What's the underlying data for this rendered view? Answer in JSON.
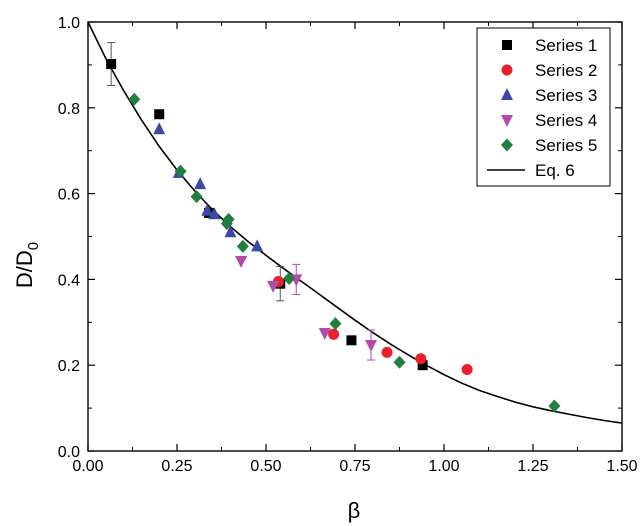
{
  "chart_data": {
    "type": "scatter",
    "xlabel": "β",
    "ylabel_main": "D/D",
    "ylabel_sub": "0",
    "xlim": [
      0,
      1.5
    ],
    "ylim": [
      0,
      1.0
    ],
    "x_ticks": [
      "0.00",
      "0.25",
      "0.50",
      "0.75",
      "1.00",
      "1.25",
      "1.50"
    ],
    "y_ticks": [
      "0.0",
      "0.2",
      "0.4",
      "0.6",
      "0.8",
      "1.0"
    ],
    "x_tick_values": [
      0,
      0.25,
      0.5,
      0.75,
      1.0,
      1.25,
      1.5
    ],
    "y_tick_values": [
      0,
      0.2,
      0.4,
      0.6,
      0.8,
      1.0
    ],
    "grid": false,
    "legend_position": "top-right",
    "series": [
      {
        "name": "Series 1",
        "marker": "square",
        "color": "#000000",
        "points": [
          {
            "x": 0.065,
            "y": 0.902,
            "err": 0.05
          },
          {
            "x": 0.2,
            "y": 0.785
          },
          {
            "x": 0.34,
            "y": 0.555
          },
          {
            "x": 0.54,
            "y": 0.39,
            "err": 0.04
          },
          {
            "x": 0.74,
            "y": 0.258
          },
          {
            "x": 0.94,
            "y": 0.2
          }
        ]
      },
      {
        "name": "Series 2",
        "marker": "circle",
        "color": "#e8202a",
        "points": [
          {
            "x": 0.535,
            "y": 0.395
          },
          {
            "x": 0.69,
            "y": 0.272
          },
          {
            "x": 0.84,
            "y": 0.23
          },
          {
            "x": 0.935,
            "y": 0.215
          },
          {
            "x": 1.065,
            "y": 0.19
          }
        ]
      },
      {
        "name": "Series 3",
        "marker": "triangle-up",
        "color": "#3a48a8",
        "points": [
          {
            "x": 0.2,
            "y": 0.75
          },
          {
            "x": 0.255,
            "y": 0.648
          },
          {
            "x": 0.315,
            "y": 0.622
          },
          {
            "x": 0.335,
            "y": 0.56
          },
          {
            "x": 0.355,
            "y": 0.552
          },
          {
            "x": 0.4,
            "y": 0.51
          },
          {
            "x": 0.475,
            "y": 0.477
          }
        ]
      },
      {
        "name": "Series 4",
        "marker": "triangle-down",
        "color": "#b44aab",
        "points": [
          {
            "x": 0.43,
            "y": 0.443
          },
          {
            "x": 0.52,
            "y": 0.385
          },
          {
            "x": 0.585,
            "y": 0.4,
            "err": 0.035
          },
          {
            "x": 0.665,
            "y": 0.275
          },
          {
            "x": 0.795,
            "y": 0.247,
            "err": 0.035
          }
        ]
      },
      {
        "name": "Series 5",
        "marker": "diamond",
        "color": "#1f7f3f",
        "points": [
          {
            "x": 0.13,
            "y": 0.82
          },
          {
            "x": 0.26,
            "y": 0.652
          },
          {
            "x": 0.305,
            "y": 0.593
          },
          {
            "x": 0.395,
            "y": 0.54
          },
          {
            "x": 0.39,
            "y": 0.53
          },
          {
            "x": 0.435,
            "y": 0.477
          },
          {
            "x": 0.565,
            "y": 0.402
          },
          {
            "x": 0.695,
            "y": 0.297
          },
          {
            "x": 0.875,
            "y": 0.207
          },
          {
            "x": 1.31,
            "y": 0.105
          }
        ]
      },
      {
        "name": "Eq. 6",
        "type": "line",
        "color": "#000000",
        "x": [
          0,
          0.05,
          0.1,
          0.15,
          0.2,
          0.25,
          0.3,
          0.35,
          0.4,
          0.45,
          0.5,
          0.55,
          0.6,
          0.65,
          0.7,
          0.75,
          0.8,
          0.85,
          0.9,
          0.95,
          1.0,
          1.05,
          1.1,
          1.15,
          1.2,
          1.25,
          1.3,
          1.35,
          1.4,
          1.45,
          1.5
        ],
        "values": [
          1.0,
          0.915,
          0.84,
          0.772,
          0.71,
          0.655,
          0.606,
          0.562,
          0.523,
          0.488,
          0.456,
          0.425,
          0.395,
          0.365,
          0.335,
          0.305,
          0.276,
          0.249,
          0.224,
          0.2,
          0.178,
          0.158,
          0.141,
          0.127,
          0.114,
          0.103,
          0.094,
          0.086,
          0.078,
          0.071,
          0.065
        ]
      }
    ]
  }
}
